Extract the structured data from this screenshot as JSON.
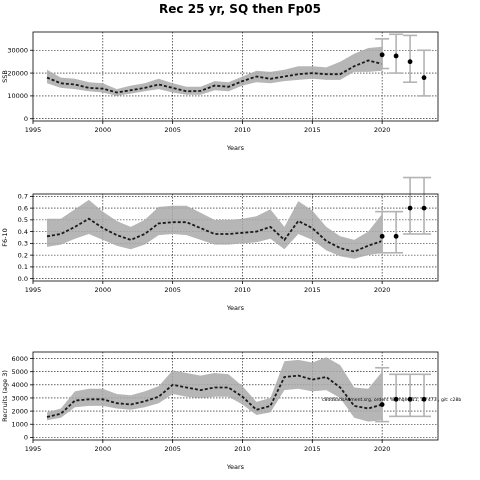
{
  "title": "Rec 25 yr, SQ then Fp05",
  "chart_data": [
    {
      "type": "line",
      "ylabel": "SSB",
      "xlabel": "Years",
      "xlim": [
        1995,
        2024
      ],
      "ylim": [
        -1000,
        38000
      ],
      "xticks": [
        1995,
        2000,
        2005,
        2010,
        2015,
        2020
      ],
      "yticks": [
        0,
        10000,
        20000,
        30000
      ],
      "grid": "dotted",
      "series": [
        {
          "x": [
            1996,
            1997,
            1998,
            1999,
            2000,
            2001,
            2002,
            2003,
            2004,
            2005,
            2006,
            2007,
            2008,
            2009,
            2010,
            2011,
            2012,
            2013,
            2014,
            2015,
            2016,
            2017,
            2018,
            2019,
            2020
          ],
          "median": [
            18000,
            15500,
            15000,
            13500,
            13200,
            11500,
            12500,
            13500,
            15000,
            13500,
            12000,
            12200,
            14500,
            14000,
            16500,
            18500,
            17500,
            18500,
            19500,
            20000,
            19500,
            19500,
            23000,
            25500,
            24000
          ],
          "lower": [
            15500,
            13500,
            13000,
            12000,
            11500,
            10000,
            11000,
            12000,
            13000,
            11500,
            10500,
            10500,
            12500,
            12000,
            14500,
            16000,
            15500,
            16500,
            17000,
            17500,
            17000,
            17000,
            20500,
            20500,
            21000
          ],
          "upper": [
            21500,
            18000,
            17500,
            16000,
            15500,
            13000,
            14500,
            15500,
            17500,
            15500,
            14000,
            14000,
            16500,
            16000,
            18500,
            21000,
            20500,
            21500,
            23000,
            23000,
            22500,
            25000,
            28500,
            31000,
            31500
          ]
        }
      ],
      "projection": {
        "x": [
          2020,
          2021,
          2022,
          2023
        ],
        "median": [
          28000,
          27500,
          25000,
          18000
        ],
        "lower": [
          22000,
          20000,
          16000,
          10000
        ],
        "upper": [
          35000,
          37000,
          36500,
          30000
        ]
      }
    },
    {
      "type": "line",
      "ylabel": "F6-10",
      "xlabel": "Years",
      "xlim": [
        1995,
        2024
      ],
      "ylim": [
        -0.02,
        0.72
      ],
      "xticks": [
        1995,
        2000,
        2005,
        2010,
        2015,
        2020
      ],
      "yticks": [
        0.0,
        0.1,
        0.2,
        0.3,
        0.4,
        0.5,
        0.6,
        0.7
      ],
      "ytick_labels": [
        "0.0",
        "0.1",
        "0.2",
        "0.3",
        "0.4",
        "0.5",
        "0.6",
        "0.7"
      ],
      "grid": "dotted",
      "series": [
        {
          "x": [
            1996,
            1997,
            1998,
            1999,
            2000,
            2001,
            2002,
            2003,
            2004,
            2005,
            2006,
            2007,
            2008,
            2009,
            2010,
            2011,
            2012,
            2013,
            2014,
            2015,
            2016,
            2017,
            2018,
            2019,
            2020
          ],
          "median": [
            0.36,
            0.38,
            0.44,
            0.51,
            0.43,
            0.37,
            0.33,
            0.38,
            0.47,
            0.48,
            0.48,
            0.43,
            0.38,
            0.38,
            0.39,
            0.4,
            0.44,
            0.33,
            0.49,
            0.43,
            0.32,
            0.26,
            0.23,
            0.28,
            0.32
          ],
          "lower": [
            0.27,
            0.29,
            0.34,
            0.38,
            0.33,
            0.28,
            0.25,
            0.29,
            0.37,
            0.38,
            0.37,
            0.33,
            0.29,
            0.29,
            0.3,
            0.31,
            0.34,
            0.25,
            0.38,
            0.33,
            0.24,
            0.19,
            0.17,
            0.2,
            0.22
          ],
          "upper": [
            0.51,
            0.51,
            0.59,
            0.67,
            0.57,
            0.49,
            0.44,
            0.5,
            0.61,
            0.62,
            0.62,
            0.56,
            0.5,
            0.5,
            0.51,
            0.53,
            0.59,
            0.44,
            0.66,
            0.58,
            0.44,
            0.36,
            0.33,
            0.4,
            0.55
          ]
        }
      ],
      "projection": {
        "x": [
          2020,
          2021,
          2022,
          2023
        ],
        "median": [
          0.36,
          0.36,
          0.6,
          0.6
        ],
        "lower": [
          0.22,
          0.22,
          0.38,
          0.38
        ],
        "upper": [
          0.57,
          0.57,
          0.86,
          0.86
        ]
      }
    },
    {
      "type": "line",
      "ylabel": "Recruits (age 3)",
      "xlabel": "Years",
      "xlim": [
        1995,
        2024
      ],
      "ylim": [
        -200,
        6500
      ],
      "xticks": [
        1995,
        2000,
        2005,
        2010,
        2015,
        2020
      ],
      "yticks": [
        0,
        1000,
        2000,
        3000,
        4000,
        5000,
        6000
      ],
      "grid": "dotted",
      "annotation": "c8dd8adsAdment.srg, orders %bmqe0 11, 11 473 , git: c28b",
      "series": [
        {
          "x": [
            1996,
            1997,
            1998,
            1999,
            2000,
            2001,
            2002,
            2003,
            2004,
            2005,
            2006,
            2007,
            2008,
            2009,
            2010,
            2011,
            2012,
            2013,
            2014,
            2015,
            2016,
            2017,
            2018,
            2019,
            2020
          ],
          "median": [
            1550,
            1800,
            2800,
            2900,
            2900,
            2600,
            2500,
            2750,
            3100,
            4000,
            3800,
            3600,
            3800,
            3800,
            3100,
            2100,
            2400,
            4600,
            4700,
            4400,
            4600,
            3800,
            2400,
            2200,
            2500
          ],
          "lower": [
            1300,
            1500,
            2300,
            2400,
            2400,
            2200,
            2100,
            2300,
            2600,
            3300,
            3100,
            3000,
            3100,
            3100,
            2500,
            1700,
            1900,
            3600,
            3700,
            3500,
            3600,
            3000,
            1500,
            1200,
            1300
          ],
          "upper": [
            1900,
            2200,
            3500,
            3700,
            3700,
            3300,
            3200,
            3500,
            3900,
            5100,
            4900,
            4700,
            4900,
            4800,
            3900,
            2700,
            3000,
            5800,
            5900,
            5700,
            6100,
            5500,
            3800,
            3700,
            5000
          ]
        }
      ],
      "projection": {
        "x": [
          2020,
          2021,
          2022,
          2023
        ],
        "median": [
          2500,
          2900,
          2900,
          2900
        ],
        "lower": [
          1200,
          1600,
          1600,
          1600
        ],
        "upper": [
          5300,
          4800,
          4800,
          4800
        ]
      }
    }
  ]
}
